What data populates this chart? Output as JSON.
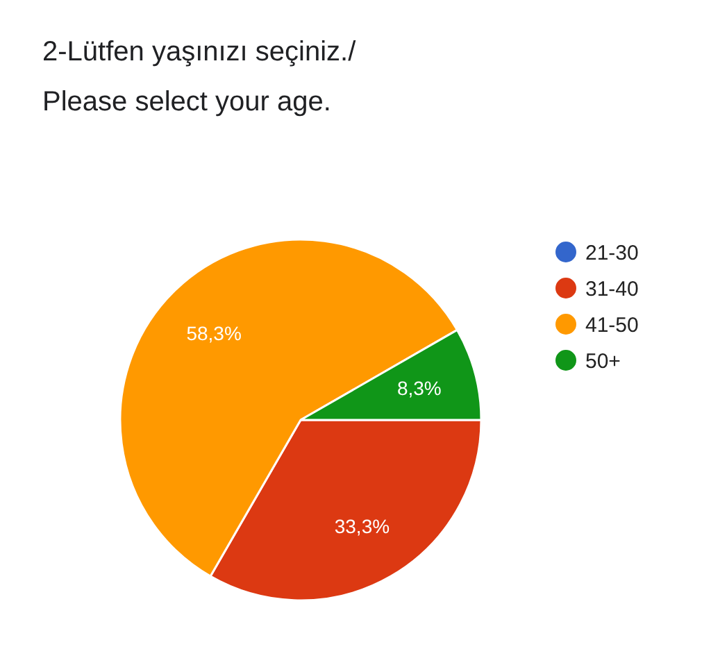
{
  "chart_data": {
    "type": "pie",
    "title": "2-Lütfen yaşınızı seçiniz./\nPlease select your age.",
    "categories": [
      "21-30",
      "31-40",
      "41-50",
      "50+"
    ],
    "values": [
      0,
      33.3,
      58.3,
      8.3
    ],
    "colors": [
      "#3366cc",
      "#dc3912",
      "#ff9900",
      "#109618"
    ],
    "value_labels": [
      null,
      "33,3%",
      "58,3%",
      "8,3%"
    ],
    "legend": "right"
  }
}
